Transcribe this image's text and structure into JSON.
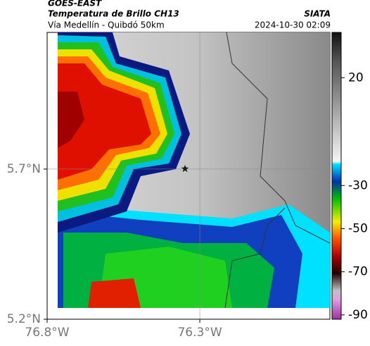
{
  "header": {
    "source": "GOES-EAST",
    "title": "Temperatura de Brillo CH13",
    "brand": "SIATA",
    "subtitle": "Vía Medellín - Quibdó 50km",
    "datetime": "2024-10-30 02:09"
  },
  "map": {
    "xlim": [
      -76.8,
      -75.874
    ],
    "ylim": [
      5.2,
      6.155
    ],
    "xticks": [
      {
        "value": -76.8,
        "label": "76.8°W"
      },
      {
        "value": -76.3,
        "label": "76.3°W"
      }
    ],
    "yticks": [
      {
        "value": 5.7,
        "label": "5.7°N"
      },
      {
        "value": 5.2,
        "label": "5.2°N"
      }
    ]
  },
  "colorbar": {
    "lim": [
      -92,
      41
    ],
    "ticks": [
      20,
      -30,
      -50,
      -70,
      -90
    ]
  }
}
